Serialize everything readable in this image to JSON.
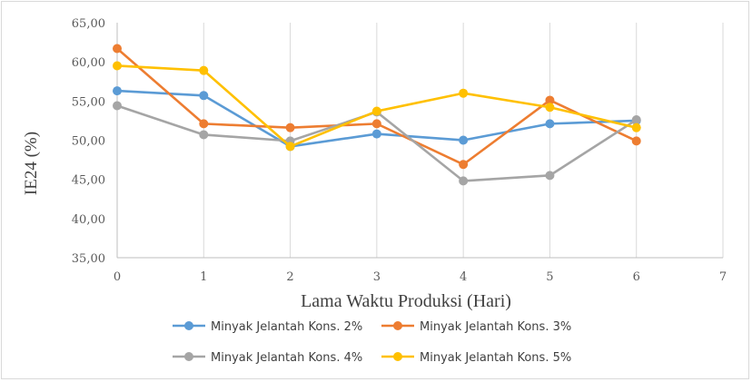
{
  "chart_data": {
    "type": "line",
    "title": "",
    "xlabel": "Lama Waktu Produksi (Hari)",
    "ylabel": "IE24 (%)",
    "xlim": [
      0,
      7
    ],
    "ylim": [
      35,
      65
    ],
    "x_ticks": [
      "0",
      "1",
      "2",
      "3",
      "4",
      "5",
      "6",
      "7"
    ],
    "y_ticks": [
      "35,00",
      "40,00",
      "45,00",
      "50,00",
      "55,00",
      "60,00",
      "65,00"
    ],
    "grid": "vertical",
    "legend_position": "bottom",
    "x": [
      0,
      1,
      2,
      3,
      4,
      5,
      6
    ],
    "series": [
      {
        "name": "Minyak Jelantah Kons. 2%",
        "color": "#5b9bd5",
        "values": [
          56.3,
          55.7,
          49.2,
          50.8,
          50.0,
          52.1,
          52.5
        ]
      },
      {
        "name": "Minyak Jelantah Kons. 3%",
        "color": "#ed7d31",
        "values": [
          61.7,
          52.1,
          51.6,
          52.1,
          46.9,
          55.1,
          49.9
        ]
      },
      {
        "name": "Minyak Jelantah Kons. 4%",
        "color": "#a5a5a5",
        "values": [
          54.4,
          50.7,
          49.9,
          53.6,
          44.8,
          45.5,
          52.6
        ]
      },
      {
        "name": "Minyak Jelantah Kons. 5%",
        "color": "#ffc000",
        "values": [
          59.5,
          58.9,
          49.2,
          53.7,
          56.0,
          54.2,
          51.6
        ]
      }
    ]
  }
}
